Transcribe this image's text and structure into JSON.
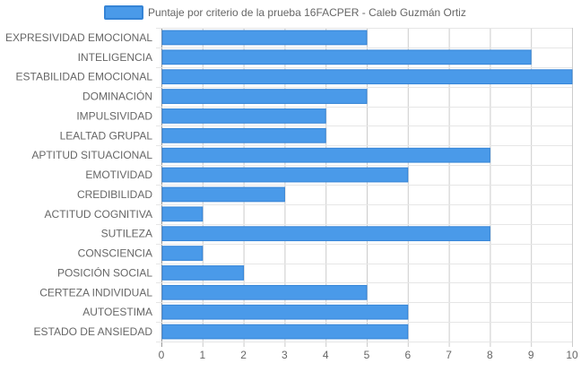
{
  "chart_data": {
    "type": "bar",
    "orientation": "horizontal",
    "categories": [
      "EXPRESIVIDAD EMOCIONAL",
      "INTELIGENCIA",
      "ESTABILIDAD EMOCIONAL",
      "DOMINACIÓN",
      "IMPULSIVIDAD",
      "LEALTAD GRUPAL",
      "APTITUD SITUACIONAL",
      "EMOTIVIDAD",
      "CREDIBILIDAD",
      "ACTITUD COGNITIVA",
      "SUTILEZA",
      "CONSCIENCIA",
      "POSICIÓN SOCIAL",
      "CERTEZA INDIVIDUAL",
      "AUTOESTIMA",
      "ESTADO DE ANSIEDAD"
    ],
    "series": [
      {
        "name": "Puntaje por criterio de la prueba 16FACPER - Caleb Guzmán Ortiz",
        "values": [
          5,
          9,
          10,
          5,
          4,
          4,
          8,
          6,
          3,
          1,
          8,
          1,
          2,
          5,
          6,
          6
        ],
        "color": "#4a9ae9",
        "border_color": "#3584d6"
      }
    ],
    "xlim": [
      0,
      10
    ],
    "x_ticks": [
      "0",
      "1",
      "2",
      "3",
      "4",
      "5",
      "6",
      "7",
      "8",
      "9",
      "10"
    ],
    "grid": true,
    "legend_position": "top"
  }
}
